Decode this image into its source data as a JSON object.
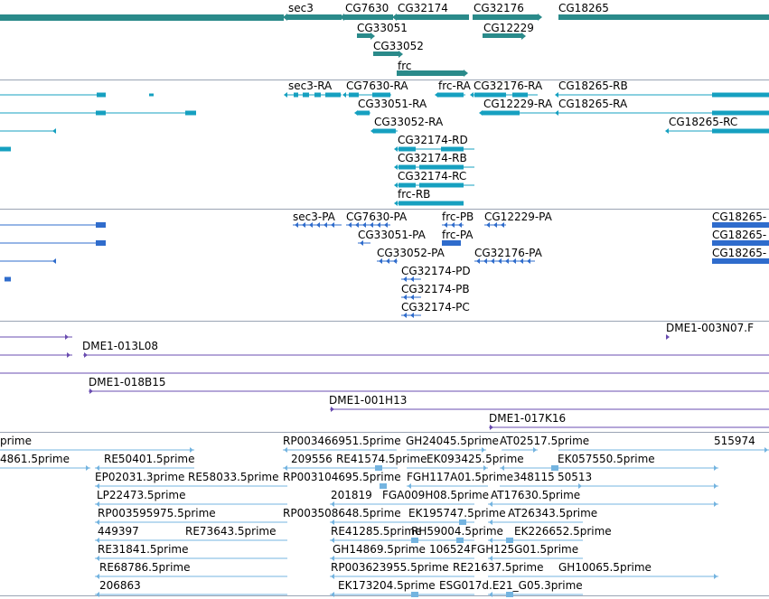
{
  "view": "genome-browser-tracks",
  "colors": {
    "gene": "#2a8a8a",
    "mrna": "#16a0c0",
    "protein": "#2f6ccc",
    "clone": "#6a4cb0",
    "est": "#74b4e0",
    "separator": "#9aa4b4"
  },
  "tracks": [
    {
      "name": "gene",
      "features": [
        {
          "label": "sec3",
          "strand": "-"
        },
        {
          "label": "CG7630",
          "strand": "-"
        },
        {
          "label": "CG32174",
          "strand": "-"
        },
        {
          "label": "CG32176",
          "strand": "+"
        },
        {
          "label": "CG18265",
          "strand": "+"
        },
        {
          "label": "CG33051",
          "strand": "+"
        },
        {
          "label": "CG12229",
          "strand": "+"
        },
        {
          "label": "CG33052",
          "strand": "+"
        },
        {
          "label": "frc",
          "strand": "+"
        }
      ]
    },
    {
      "name": "mRNA",
      "features": [
        {
          "label": "sec3-RA"
        },
        {
          "label": "CG7630-RA"
        },
        {
          "label": "frc-RA"
        },
        {
          "label": "CG32176-RA"
        },
        {
          "label": "CG18265-RB"
        },
        {
          "label": "CG33051-RA"
        },
        {
          "label": "CG12229-RA"
        },
        {
          "label": "CG18265-RA"
        },
        {
          "label": "CG33052-RA"
        },
        {
          "label": "CG18265-RC"
        },
        {
          "label": "CG32174-RD"
        },
        {
          "label": "CG32174-RB"
        },
        {
          "label": "CG32174-RC"
        },
        {
          "label": "frc-RB"
        }
      ]
    },
    {
      "name": "protein",
      "features": [
        {
          "label": "sec3-PA"
        },
        {
          "label": "CG7630-PA"
        },
        {
          "label": "frc-PB"
        },
        {
          "label": "CG12229-PA"
        },
        {
          "label": "CG18265-"
        },
        {
          "label": "CG33051-PA"
        },
        {
          "label": "frc-PA"
        },
        {
          "label": "CG18265-"
        },
        {
          "label": "CG33052-PA"
        },
        {
          "label": "CG32176-PA"
        },
        {
          "label": "CG18265-"
        },
        {
          "label": "CG32174-PD"
        },
        {
          "label": "CG32174-PB"
        },
        {
          "label": "CG32174-PC"
        }
      ]
    },
    {
      "name": "clones",
      "features": [
        {
          "label": "DME1-003N07.F"
        },
        {
          "label": "DME1-013L08"
        },
        {
          "label": "DME1-018B15"
        },
        {
          "label": "DME1-001H13"
        },
        {
          "label": "DME1-017K16"
        }
      ]
    },
    {
      "name": "EST",
      "features": [
        {
          "label": "prime"
        },
        {
          "label": "RP003466951.5prime"
        },
        {
          "label": "GH24045.5prime"
        },
        {
          "label": "AT02517.5prime"
        },
        {
          "label": "515974"
        },
        {
          "label": "4861.5prime"
        },
        {
          "label": "RE50401.5prime"
        },
        {
          "label": "209556"
        },
        {
          "label": "RE41574.5prime"
        },
        {
          "label": "EK093425.5prime"
        },
        {
          "label": "EK057550.5prime"
        },
        {
          "label": "EP02031.3prime"
        },
        {
          "label": "RE58033.5prime"
        },
        {
          "label": "RP003104695.5prime"
        },
        {
          "label": "FGH117A01.5prime"
        },
        {
          "label": "348115"
        },
        {
          "label": "50513"
        },
        {
          "label": "LP22473.5prime"
        },
        {
          "label": "201819"
        },
        {
          "label": "FGA009H08.5prime"
        },
        {
          "label": "AT17630.5prime"
        },
        {
          "label": "RP003595975.5prime"
        },
        {
          "label": "RP003508648.5prime"
        },
        {
          "label": "EK195747.5prime"
        },
        {
          "label": "AT26343.5prime"
        },
        {
          "label": "449397"
        },
        {
          "label": "RE73643.5prime"
        },
        {
          "label": "RE41285.5prime"
        },
        {
          "label": "RH59004.5prime"
        },
        {
          "label": "EK226652.5prime"
        },
        {
          "label": "RE31841.5prime"
        },
        {
          "label": "GH14869.5prime"
        },
        {
          "label": "106524"
        },
        {
          "label": "FGH125G01.5prime"
        },
        {
          "label": "RE68786.5prime"
        },
        {
          "label": "RP003623955.5prime"
        },
        {
          "label": "RE21637.5prime"
        },
        {
          "label": "GH10065.5prime"
        },
        {
          "label": "206863"
        },
        {
          "label": "EK173204.5prime"
        },
        {
          "label": "ESG017d.E21_G05.3prime"
        }
      ]
    }
  ]
}
